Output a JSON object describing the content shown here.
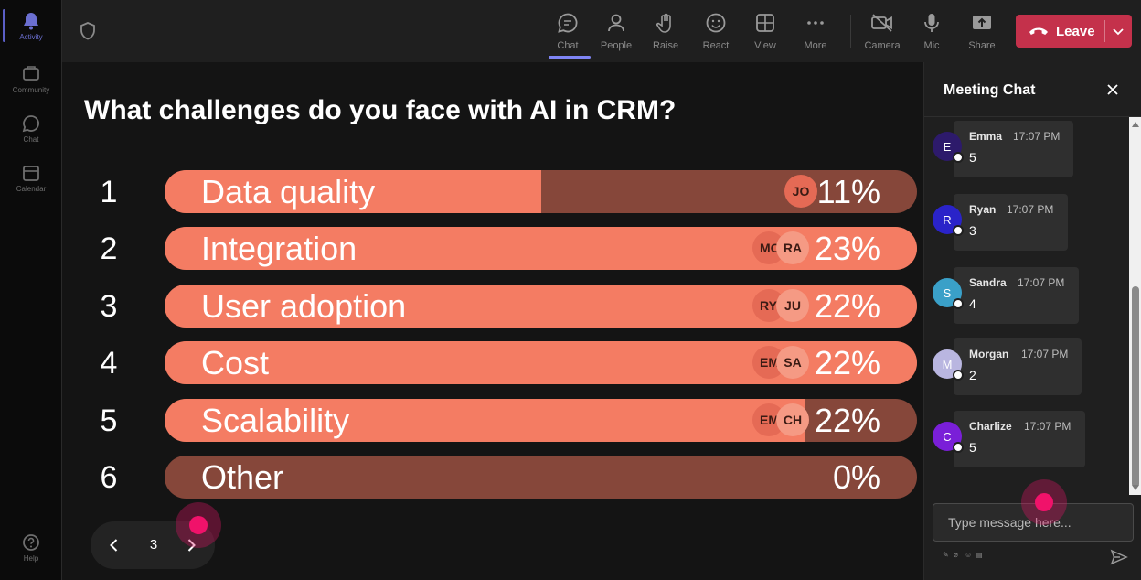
{
  "rail": {
    "items": [
      {
        "label": "Activity",
        "icon": "bell-icon"
      },
      {
        "label": "Community",
        "icon": "community-icon"
      },
      {
        "label": "Chat",
        "icon": "chat-icon"
      },
      {
        "label": "Calendar",
        "icon": "calendar-icon"
      }
    ],
    "help_label": "Help"
  },
  "toolbar": {
    "buttons": [
      {
        "label": "Chat",
        "icon": "chat-icon",
        "active": true
      },
      {
        "label": "People",
        "icon": "people-icon"
      },
      {
        "label": "Raise",
        "icon": "raise-hand-icon"
      },
      {
        "label": "React",
        "icon": "smile-icon"
      },
      {
        "label": "View",
        "icon": "grid-icon"
      },
      {
        "label": "More",
        "icon": "more-icon"
      },
      {
        "label": "Camera",
        "icon": "camera-off-icon"
      },
      {
        "label": "Mic",
        "icon": "mic-icon"
      },
      {
        "label": "Share",
        "icon": "share-icon"
      }
    ],
    "leave_label": "Leave",
    "leave_color": "#c4314b"
  },
  "poll": {
    "question": "What challenges do you face with AI in CRM?",
    "accent_color": "#f47c63",
    "track_color": "#86473a",
    "options": [
      {
        "num": "1",
        "label": "Data quality",
        "pct": "11%",
        "fill": 0.5,
        "avatars": [
          "JO"
        ]
      },
      {
        "num": "2",
        "label": "Integration",
        "pct": "23%",
        "fill": 1.0,
        "avatars": [
          "MO",
          "RA"
        ]
      },
      {
        "num": "3",
        "label": "User adoption",
        "pct": "22%",
        "fill": 1.0,
        "avatars": [
          "RY",
          "JU"
        ]
      },
      {
        "num": "4",
        "label": "Cost",
        "pct": "22%",
        "fill": 1.0,
        "avatars": [
          "EM",
          "SA"
        ]
      },
      {
        "num": "5",
        "label": "Scalability",
        "pct": "22%",
        "fill": 0.85,
        "avatars": [
          "EM",
          "CH"
        ]
      },
      {
        "num": "6",
        "label": "Other",
        "pct": "0%",
        "fill": 0.0,
        "avatars": []
      }
    ]
  },
  "pager": {
    "page": "3"
  },
  "chat": {
    "title": "Meeting Chat",
    "messages": [
      {
        "initial": "E",
        "name": "Emma",
        "time": "17:07 PM",
        "text": "5",
        "color": "#2d1a6b"
      },
      {
        "initial": "R",
        "name": "Ryan",
        "time": "17:07 PM",
        "text": "3",
        "color": "#2a23c9"
      },
      {
        "initial": "S",
        "name": "Sandra",
        "time": "17:07 PM",
        "text": "4",
        "color": "#3aa0c8"
      },
      {
        "initial": "M",
        "name": "Morgan",
        "time": "17:07 PM",
        "text": "2",
        "color": "#b9b6e0"
      },
      {
        "initial": "C",
        "name": "Charlize",
        "time": "17:07 PM",
        "text": "5",
        "color": "#7a1fd8"
      }
    ],
    "compose_placeholder": "Type message here..."
  }
}
